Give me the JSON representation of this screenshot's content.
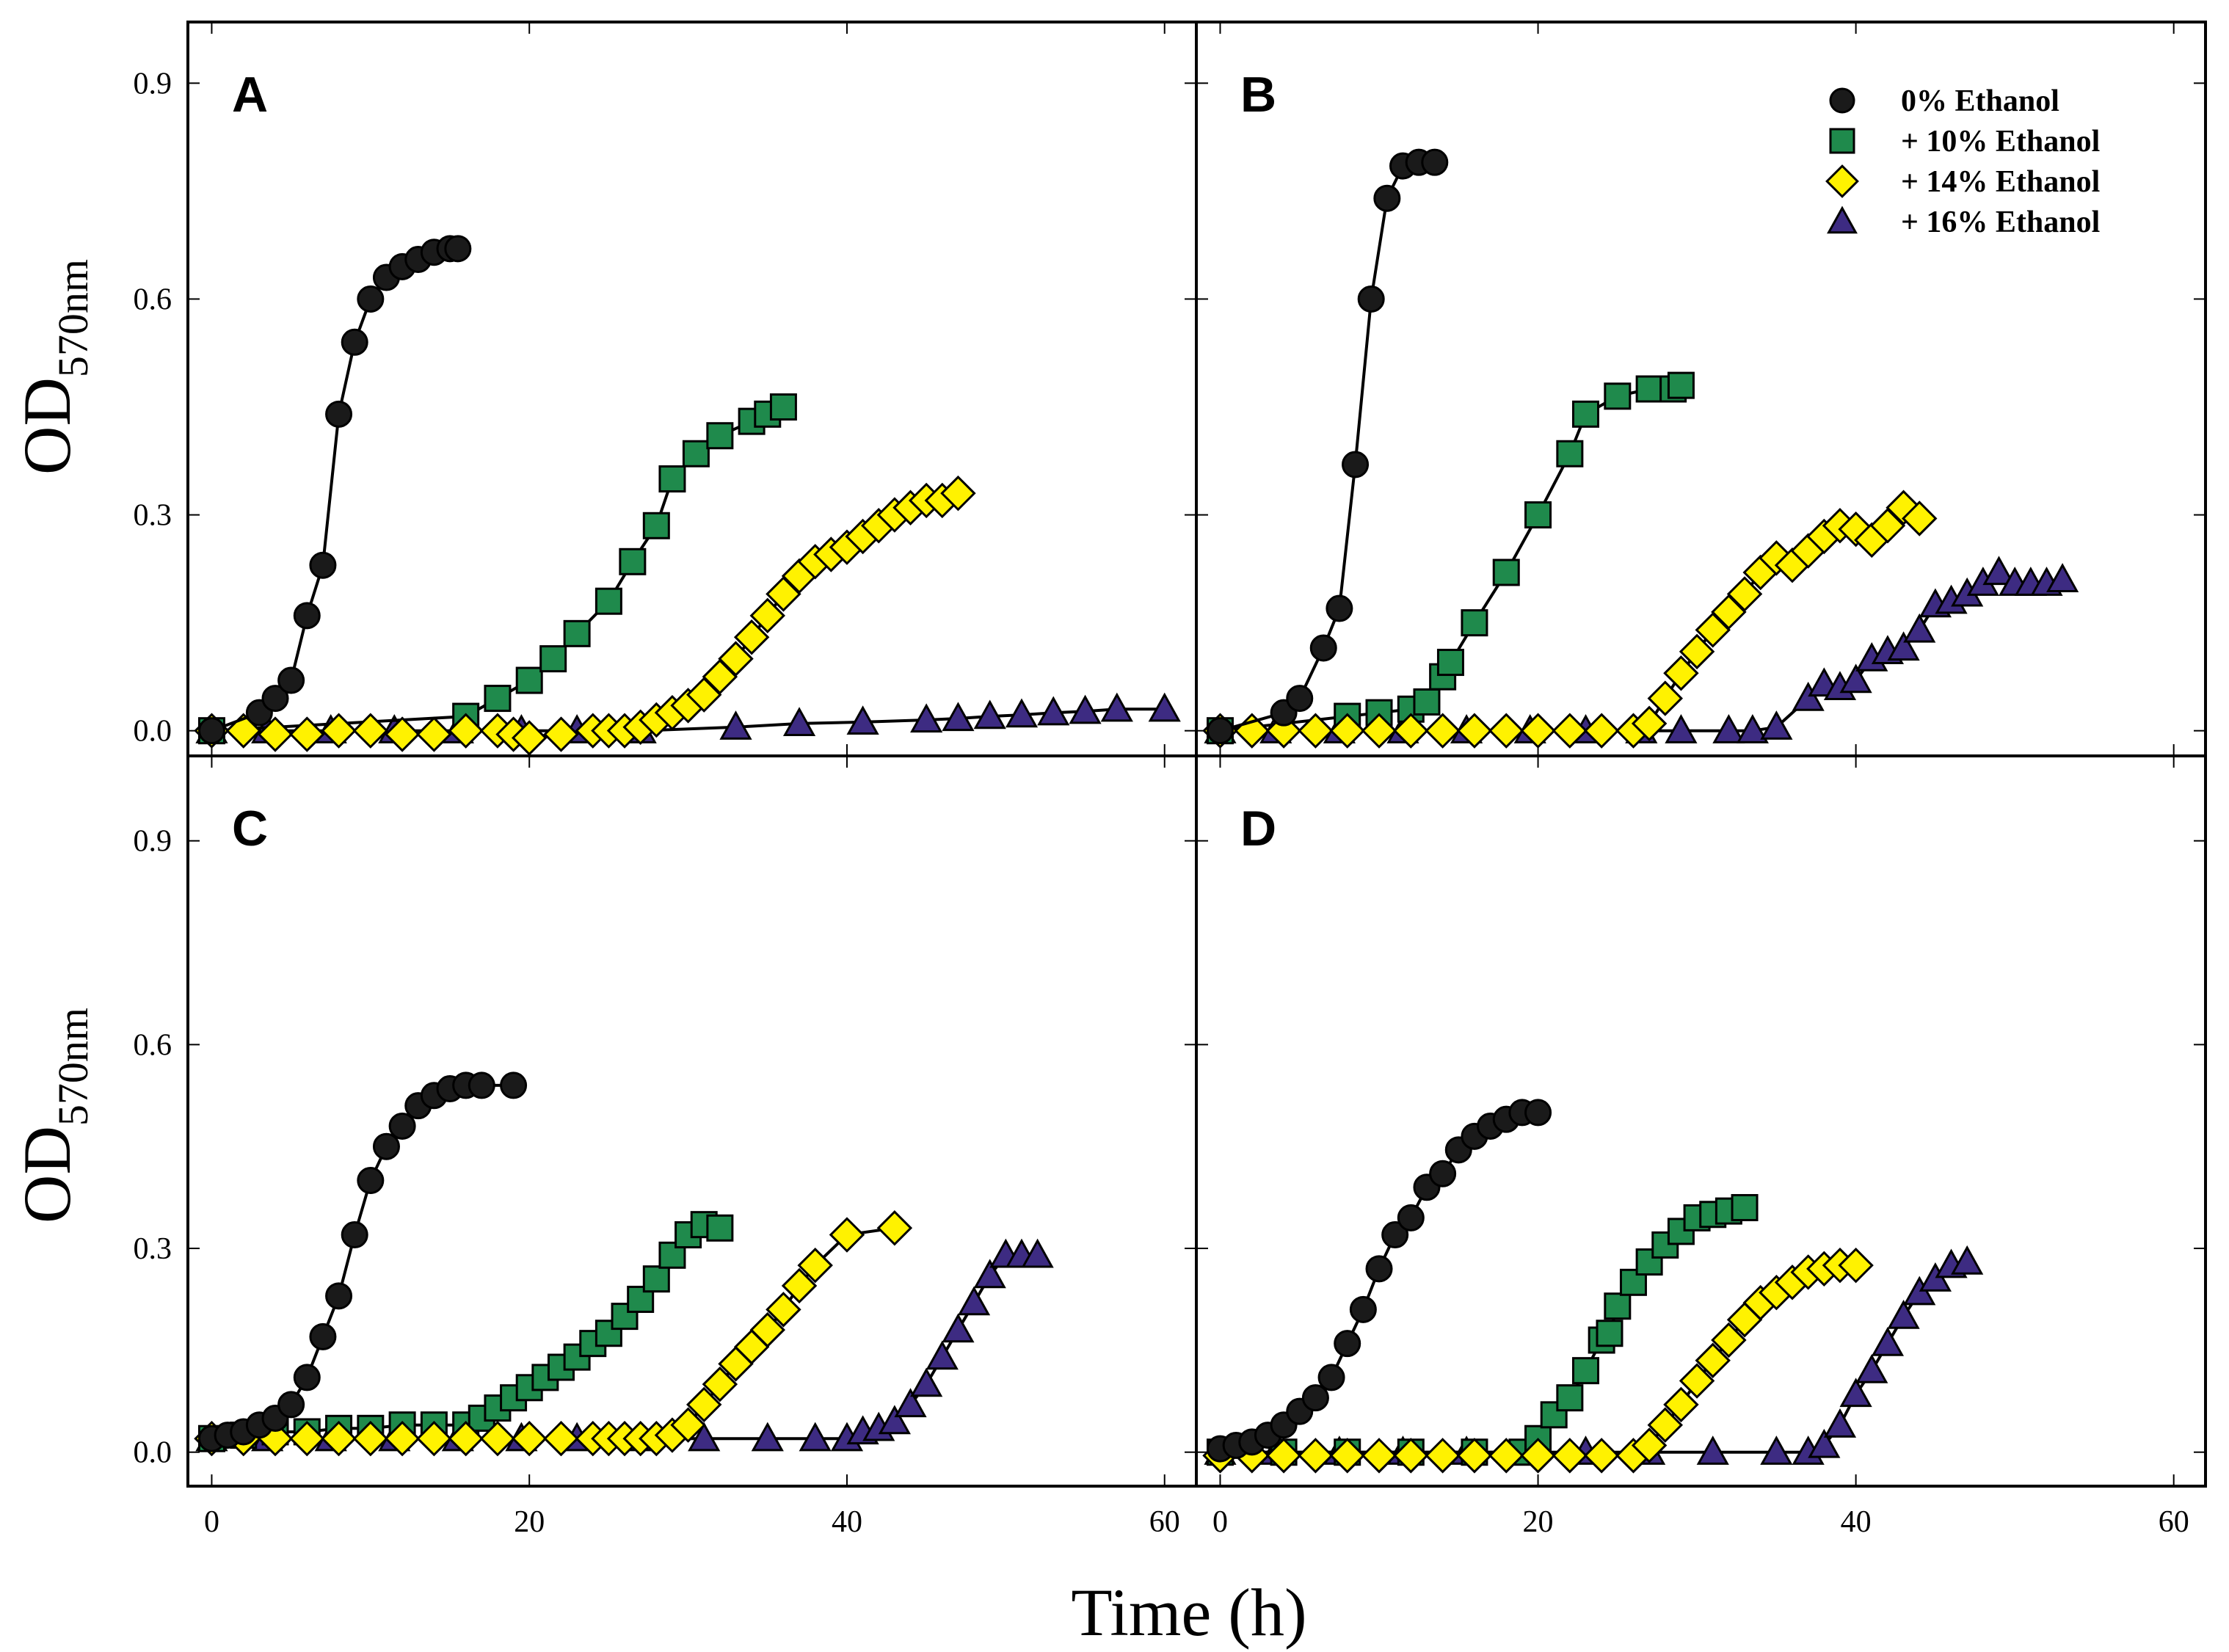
{
  "chart_data": {
    "type": "scatter",
    "x_label": "Time (h)",
    "y_label": {
      "main": "OD",
      "subscript": "570nm"
    },
    "x_ticks": [
      "0",
      "20",
      "40",
      "60"
    ],
    "y_ticks": [
      "0.0",
      "0.3",
      "0.6",
      "0.9"
    ],
    "xlim": [
      -1.5,
      62
    ],
    "colors": {
      "0% Ethanol": "#1a1a1a",
      "+ 10% Ethanol": "#1f8a4c",
      "+ 14% Ethanol": "#fff200",
      "+ 16% Ethanol": "#3d2b82"
    },
    "legend": {
      "panel": "B",
      "entries": [
        {
          "series": "0% Ethanol",
          "label": "0% Ethanol",
          "marker": "circle"
        },
        {
          "series": "+ 10% Ethanol",
          "label": "+ 10% Ethanol",
          "marker": "square"
        },
        {
          "series": "+ 14% Ethanol",
          "label": "+ 14% Ethanol",
          "marker": "diamond"
        },
        {
          "series": "+ 16% Ethanol",
          "label": "+ 16% Ethanol",
          "marker": "triangle"
        }
      ]
    },
    "panels": [
      {
        "label": "A",
        "ylim": [
          -0.035,
          0.985
        ],
        "series": [
          {
            "name": "0% Ethanol",
            "marker": "circle",
            "x": [
              0,
              3,
              4,
              5,
              6,
              7,
              8,
              9,
              10,
              11,
              12,
              13,
              14,
              15,
              15.5
            ],
            "y": [
              0.0,
              0.025,
              0.045,
              0.07,
              0.16,
              0.23,
              0.44,
              0.54,
              0.6,
              0.63,
              0.645,
              0.655,
              0.665,
              0.67,
              0.67
            ]
          },
          {
            "name": "+ 10% Ethanol",
            "marker": "square",
            "x": [
              0,
              16,
              18,
              20,
              21.5,
              23,
              25,
              26.5,
              28,
              29,
              30.5,
              32,
              34,
              35,
              36
            ],
            "y": [
              0.0,
              0.02,
              0.045,
              0.07,
              0.1,
              0.135,
              0.18,
              0.235,
              0.285,
              0.35,
              0.385,
              0.41,
              0.43,
              0.44,
              0.45
            ]
          },
          {
            "name": "+ 14% Ethanol",
            "marker": "diamond",
            "x": [
              0,
              2,
              4,
              6,
              8,
              10,
              12,
              14,
              16,
              18,
              19,
              20,
              22,
              24,
              25,
              26,
              27,
              28,
              29,
              30,
              31,
              32,
              33,
              34,
              35,
              36,
              37,
              38,
              39,
              40,
              41,
              42,
              43,
              44,
              45,
              46,
              47
            ],
            "y": [
              0.0,
              0.0,
              -0.005,
              -0.005,
              0.0,
              0.0,
              -0.005,
              -0.005,
              0.0,
              0.0,
              -0.005,
              -0.01,
              -0.005,
              0.0,
              0.0,
              0.0,
              0.005,
              0.015,
              0.025,
              0.035,
              0.05,
              0.075,
              0.1,
              0.13,
              0.16,
              0.19,
              0.215,
              0.235,
              0.245,
              0.255,
              0.27,
              0.285,
              0.3,
              0.31,
              0.32,
              0.32,
              0.33
            ]
          },
          {
            "name": "+ 16% Ethanol",
            "marker": "triangle",
            "x": [
              0,
              3.5,
              7.5,
              11.5,
              15.5,
              19.5,
              23,
              27,
              33,
              37,
              41,
              45,
              47,
              49,
              51,
              53,
              55,
              57,
              60
            ],
            "y": [
              0.0,
              0.0,
              0.0,
              0.0,
              0.0,
              0.0,
              0.0,
              0.0,
              0.005,
              0.01,
              0.012,
              0.015,
              0.017,
              0.02,
              0.022,
              0.025,
              0.027,
              0.03,
              0.03
            ]
          }
        ]
      },
      {
        "label": "B",
        "ylim": [
          -0.035,
          0.985
        ],
        "series": [
          {
            "name": "0% Ethanol",
            "marker": "circle",
            "x": [
              0,
              4,
              5,
              6.5,
              7.5,
              8.5,
              9.5,
              10.5,
              11.5,
              12.5,
              13.5
            ],
            "y": [
              0.0,
              0.025,
              0.045,
              0.115,
              0.17,
              0.37,
              0.6,
              0.74,
              0.785,
              0.79,
              0.79
            ]
          },
          {
            "name": "+ 10% Ethanol",
            "marker": "square",
            "x": [
              0,
              8,
              10,
              12,
              13,
              14,
              14.5,
              16,
              18,
              20,
              22,
              23,
              25,
              27,
              28.5,
              29
            ],
            "y": [
              0.0,
              0.02,
              0.025,
              0.03,
              0.04,
              0.075,
              0.095,
              0.15,
              0.22,
              0.3,
              0.385,
              0.44,
              0.465,
              0.475,
              0.475,
              0.48
            ]
          },
          {
            "name": "+ 14% Ethanol",
            "marker": "diamond",
            "x": [
              0,
              2,
              4,
              6,
              8,
              10,
              12,
              14,
              16,
              18,
              20,
              22,
              24,
              26,
              27,
              28,
              29,
              30,
              31,
              32,
              33,
              34,
              35,
              36,
              37,
              38,
              39,
              40,
              41,
              42,
              43,
              44
            ],
            "y": [
              0.0,
              0.0,
              0.0,
              0.0,
              0.0,
              0.0,
              0.0,
              0.0,
              0.0,
              0.0,
              0.0,
              0.0,
              0.0,
              0.0,
              0.01,
              0.045,
              0.08,
              0.11,
              0.14,
              0.165,
              0.19,
              0.22,
              0.24,
              0.23,
              0.25,
              0.27,
              0.285,
              0.28,
              0.265,
              0.285,
              0.31,
              0.295
            ]
          },
          {
            "name": "+ 16% Ethanol",
            "marker": "triangle",
            "x": [
              0,
              3.5,
              7.5,
              11.5,
              15.5,
              19.5,
              23,
              26.5,
              29,
              32,
              33.5,
              35,
              37,
              38,
              39,
              40,
              41,
              42,
              43,
              44,
              45,
              46,
              47,
              48,
              49,
              50,
              51,
              52,
              53
            ],
            "y": [
              0.0,
              0.0,
              0.0,
              0.0,
              0.0,
              0.0,
              0.0,
              0.0,
              0.0,
              0.0,
              0.0,
              0.005,
              0.045,
              0.065,
              0.06,
              0.07,
              0.1,
              0.11,
              0.115,
              0.14,
              0.175,
              0.18,
              0.19,
              0.205,
              0.22,
              0.205,
              0.205,
              0.205,
              0.21
            ]
          }
        ]
      },
      {
        "label": "C",
        "ylim": [
          -0.05,
          1.025
        ],
        "series": [
          {
            "name": "0% Ethanol",
            "marker": "circle",
            "x": [
              0,
              1,
              2,
              3,
              4,
              5,
              6,
              7,
              8,
              9,
              10,
              11,
              12,
              13,
              14,
              15,
              16,
              17,
              19
            ],
            "y": [
              0.02,
              0.025,
              0.03,
              0.04,
              0.05,
              0.07,
              0.11,
              0.17,
              0.23,
              0.32,
              0.4,
              0.45,
              0.48,
              0.51,
              0.525,
              0.535,
              0.54,
              0.54,
              0.54
            ]
          },
          {
            "name": "+ 10% Ethanol",
            "marker": "square",
            "x": [
              0,
              2,
              4,
              6,
              8,
              10,
              12,
              14,
              16,
              17,
              18,
              19,
              20,
              21,
              22,
              23,
              24,
              25,
              26,
              27,
              28,
              29,
              30,
              31,
              32
            ],
            "y": [
              0.02,
              0.025,
              0.03,
              0.03,
              0.035,
              0.035,
              0.04,
              0.04,
              0.04,
              0.05,
              0.065,
              0.08,
              0.095,
              0.11,
              0.125,
              0.14,
              0.16,
              0.175,
              0.2,
              0.225,
              0.255,
              0.29,
              0.32,
              0.335,
              0.33
            ]
          },
          {
            "name": "+ 14% Ethanol",
            "marker": "diamond",
            "x": [
              0,
              2,
              4,
              6,
              8,
              10,
              12,
              14,
              16,
              18,
              20,
              22,
              24,
              25,
              26,
              27,
              28,
              29,
              30,
              31,
              32,
              33,
              34,
              35,
              36,
              37,
              38,
              40,
              43
            ],
            "y": [
              0.02,
              0.02,
              0.02,
              0.02,
              0.02,
              0.02,
              0.02,
              0.02,
              0.02,
              0.02,
              0.02,
              0.02,
              0.02,
              0.02,
              0.02,
              0.02,
              0.02,
              0.025,
              0.04,
              0.07,
              0.1,
              0.13,
              0.155,
              0.18,
              0.21,
              0.245,
              0.275,
              0.32,
              0.33
            ]
          },
          {
            "name": "+ 16% Ethanol",
            "marker": "triangle",
            "x": [
              0,
              3.5,
              7.5,
              11.5,
              15.5,
              19.5,
              23,
              27,
              31,
              35,
              38,
              40,
              41,
              42,
              43,
              44,
              45,
              46,
              47,
              48,
              49,
              50,
              51,
              52
            ],
            "y": [
              0.02,
              0.02,
              0.02,
              0.02,
              0.02,
              0.02,
              0.02,
              0.02,
              0.02,
              0.02,
              0.02,
              0.02,
              0.03,
              0.035,
              0.045,
              0.07,
              0.1,
              0.14,
              0.18,
              0.22,
              0.26,
              0.29,
              0.29,
              0.29
            ]
          }
        ]
      },
      {
        "label": "D",
        "ylim": [
          -0.05,
          1.025
        ],
        "series": [
          {
            "name": "0% Ethanol",
            "marker": "circle",
            "x": [
              0,
              1,
              2,
              3,
              4,
              5,
              6,
              7,
              8,
              9,
              10,
              11,
              12,
              13,
              14,
              15,
              16,
              17,
              18,
              19,
              20
            ],
            "y": [
              0.005,
              0.01,
              0.015,
              0.025,
              0.04,
              0.06,
              0.08,
              0.11,
              0.16,
              0.21,
              0.27,
              0.32,
              0.345,
              0.39,
              0.41,
              0.445,
              0.465,
              0.48,
              0.49,
              0.5,
              0.5
            ]
          },
          {
            "name": "+ 10% Ethanol",
            "marker": "square",
            "x": [
              0,
              4,
              8,
              12,
              16,
              19,
              20,
              21,
              22,
              23,
              24,
              24.5,
              25,
              26,
              27,
              28,
              29,
              30,
              31,
              32,
              33
            ],
            "y": [
              0.0,
              0.0,
              0.0,
              0.0,
              0.0,
              0.0,
              0.02,
              0.055,
              0.08,
              0.12,
              0.165,
              0.175,
              0.215,
              0.25,
              0.28,
              0.305,
              0.325,
              0.345,
              0.35,
              0.355,
              0.36
            ]
          },
          {
            "name": "+ 14% Ethanol",
            "marker": "diamond",
            "x": [
              0,
              2,
              4,
              6,
              8,
              10,
              12,
              14,
              16,
              18,
              20,
              22,
              24,
              26,
              27,
              28,
              29,
              30,
              31,
              32,
              33,
              34,
              35,
              36,
              37,
              38,
              39,
              40
            ],
            "y": [
              -0.005,
              -0.005,
              -0.005,
              -0.005,
              -0.005,
              -0.005,
              -0.005,
              -0.005,
              -0.005,
              -0.005,
              -0.005,
              -0.005,
              -0.005,
              -0.005,
              0.01,
              0.04,
              0.07,
              0.105,
              0.135,
              0.165,
              0.195,
              0.22,
              0.235,
              0.25,
              0.265,
              0.27,
              0.275,
              0.275
            ]
          },
          {
            "name": "+ 16% Ethanol",
            "marker": "triangle",
            "x": [
              0,
              3.5,
              7.5,
              11.5,
              15.5,
              19.5,
              23,
              27,
              31,
              35,
              37,
              38,
              39,
              40,
              41,
              42,
              43,
              44,
              45,
              46,
              47
            ],
            "y": [
              0.0,
              0.0,
              0.0,
              0.0,
              0.0,
              0.0,
              0.0,
              0.0,
              0.0,
              0.0,
              0.0,
              0.01,
              0.04,
              0.085,
              0.12,
              0.16,
              0.2,
              0.235,
              0.255,
              0.275,
              0.28
            ]
          }
        ]
      }
    ]
  }
}
